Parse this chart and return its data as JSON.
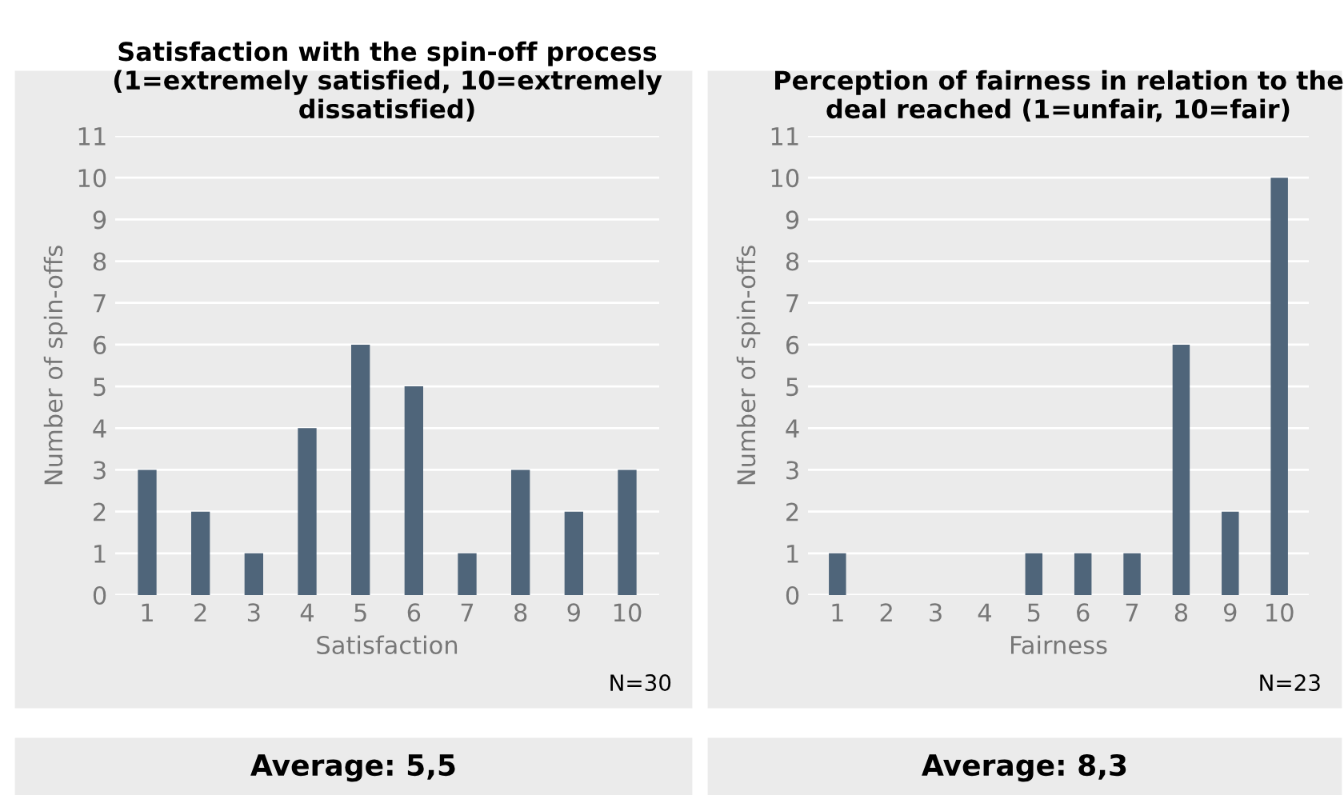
{
  "chart_data": [
    {
      "type": "bar",
      "title": "Satisfaction with the spin-off process\n(1=extremely satisfied, 10=extremely\ndissatisfied)",
      "xlabel": "Satisfaction",
      "ylabel": "Number of spin-offs",
      "categories": [
        "1",
        "2",
        "3",
        "4",
        "5",
        "6",
        "7",
        "8",
        "9",
        "10"
      ],
      "values": [
        3,
        2,
        1,
        4,
        6,
        5,
        1,
        3,
        2,
        3
      ],
      "color": "#4f657a",
      "ylim": [
        0,
        11
      ],
      "yticks": [
        0,
        1,
        2,
        3,
        4,
        5,
        6,
        7,
        8,
        9,
        10,
        11
      ],
      "grid": "y",
      "legend": false,
      "annotations": [
        "N=30",
        "Average: 5,5"
      ]
    },
    {
      "type": "bar",
      "title": "Perception of fairness in relation to the\ndeal reached (1=unfair, 10=fair)",
      "xlabel": "Fairness",
      "ylabel": "Number of spin-offs",
      "categories": [
        "1",
        "2",
        "3",
        "4",
        "5",
        "6",
        "7",
        "8",
        "9",
        "10"
      ],
      "values": [
        1,
        0,
        0,
        0,
        1,
        1,
        1,
        6,
        2,
        10
      ],
      "color": "#4f657a",
      "ylim": [
        0,
        11
      ],
      "yticks": [
        0,
        1,
        2,
        3,
        4,
        5,
        6,
        7,
        8,
        9,
        10,
        11
      ],
      "grid": "y",
      "legend": false,
      "annotations": [
        "N=23",
        "Average: 8,3"
      ]
    }
  ]
}
